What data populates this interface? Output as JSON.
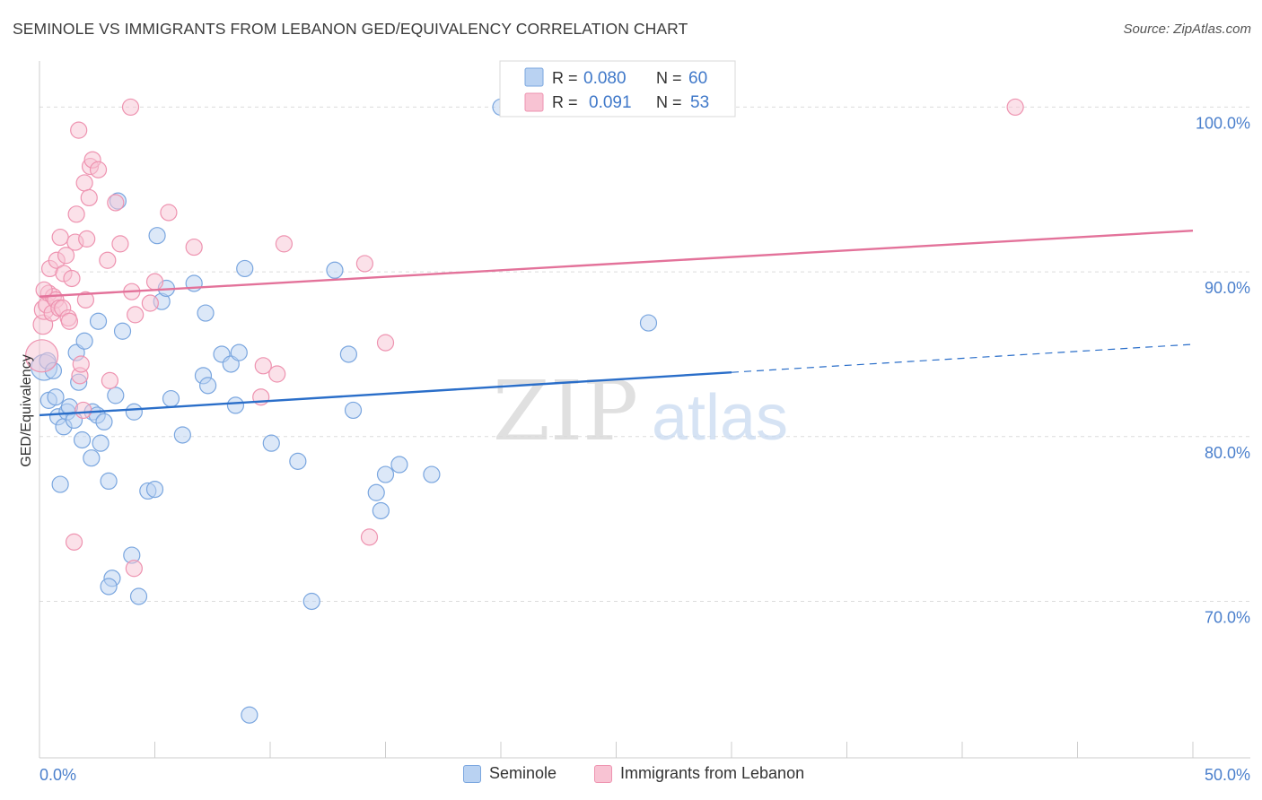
{
  "header": {
    "title": "SEMINOLE VS IMMIGRANTS FROM LEBANON GED/EQUIVALENCY CORRELATION CHART",
    "source": "Source: ZipAtlas.com"
  },
  "watermark": {
    "zip": "ZIP",
    "atlas": "atlas"
  },
  "colors": {
    "seminole_fill": "#b9d2f2",
    "seminole_stroke": "#7aa6df",
    "seminole_line": "#2a6ec9",
    "lebanon_fill": "#f8c3d3",
    "lebanon_stroke": "#ee93b0",
    "lebanon_line": "#e3729a",
    "tick_label": "#4a7fcc",
    "grid": "#dcdcdc"
  },
  "legend_top": {
    "rows": [
      {
        "r_label": "R =",
        "r_value": "0.080",
        "n_label": "N =",
        "n_value": "60"
      },
      {
        "r_label": "R =",
        "r_value": "0.091",
        "n_label": "N =",
        "n_value": "53"
      }
    ]
  },
  "legend_bottom": {
    "items": [
      "Seminole",
      "Immigrants from Lebanon"
    ]
  },
  "chart_data": {
    "type": "scatter",
    "title": "SEMINOLE VS IMMIGRANTS FROM LEBANON GED/EQUIVALENCY CORRELATION CHART",
    "xlabel": "",
    "ylabel": "GED/Equivalency",
    "xlim": [
      0,
      50
    ],
    "ylim": [
      60.5,
      102.8
    ],
    "x_tick_labels": [
      "0.0%",
      "50.0%"
    ],
    "y_ticks": [
      70,
      80,
      90,
      100
    ],
    "y_tick_labels": [
      "70.0%",
      "80.0%",
      "90.0%",
      "100.0%"
    ],
    "grid": true,
    "legend_position": "top-center",
    "series": [
      {
        "name": "Seminole",
        "R": 0.08,
        "N": 60,
        "trend": {
          "x0": 0,
          "y0": 81.3,
          "x1": 30,
          "y1": 83.9,
          "dashed_to_x": 50,
          "dashed_to_y": 85.6
        },
        "points": [
          [
            0.2,
            84.2,
            1.6
          ],
          [
            0.35,
            84.6,
            1
          ],
          [
            0.4,
            82.2,
            1
          ],
          [
            0.6,
            84.0,
            1
          ],
          [
            0.7,
            82.4,
            1
          ],
          [
            0.8,
            81.2,
            1
          ],
          [
            0.9,
            77.1,
            1
          ],
          [
            1.05,
            80.6,
            1
          ],
          [
            1.2,
            81.5,
            1
          ],
          [
            1.3,
            81.8,
            1
          ],
          [
            1.5,
            81.0,
            1
          ],
          [
            1.6,
            85.1,
            1
          ],
          [
            1.7,
            83.3,
            1
          ],
          [
            1.85,
            79.8,
            1
          ],
          [
            1.95,
            85.8,
            1
          ],
          [
            2.3,
            81.5,
            1
          ],
          [
            2.25,
            78.7,
            1
          ],
          [
            2.5,
            81.3,
            1
          ],
          [
            2.55,
            87.0,
            1
          ],
          [
            2.65,
            79.6,
            1
          ],
          [
            2.8,
            80.9,
            1
          ],
          [
            3.0,
            77.3,
            1
          ],
          [
            3.15,
            71.4,
            1
          ],
          [
            3.3,
            82.5,
            1
          ],
          [
            3.4,
            94.3,
            1
          ],
          [
            3.6,
            86.4,
            1
          ],
          [
            3.0,
            70.9,
            1
          ],
          [
            4.0,
            72.8,
            1
          ],
          [
            4.1,
            81.5,
            1
          ],
          [
            4.3,
            70.3,
            1
          ],
          [
            4.7,
            76.7,
            1
          ],
          [
            5.0,
            76.8,
            1
          ],
          [
            5.1,
            92.2,
            1
          ],
          [
            5.3,
            88.2,
            1
          ],
          [
            5.5,
            89.0,
            1
          ],
          [
            5.7,
            82.3,
            1
          ],
          [
            6.2,
            80.1,
            1
          ],
          [
            6.7,
            89.3,
            1
          ],
          [
            7.1,
            83.7,
            1
          ],
          [
            7.2,
            87.5,
            1
          ],
          [
            7.3,
            83.1,
            1
          ],
          [
            7.9,
            85.0,
            1
          ],
          [
            8.3,
            84.4,
            1
          ],
          [
            8.5,
            81.9,
            1
          ],
          [
            8.65,
            85.1,
            1
          ],
          [
            8.9,
            90.2,
            1
          ],
          [
            9.1,
            63.1,
            1
          ],
          [
            10.05,
            79.6,
            1
          ],
          [
            11.2,
            78.5,
            1
          ],
          [
            11.8,
            70.0,
            1
          ],
          [
            12.8,
            90.1,
            1
          ],
          [
            13.4,
            85.0,
            1
          ],
          [
            13.6,
            81.6,
            1
          ],
          [
            14.6,
            76.6,
            1
          ],
          [
            14.8,
            75.5,
            1
          ],
          [
            15.0,
            77.7,
            1
          ],
          [
            15.6,
            78.3,
            1
          ],
          [
            17.0,
            77.7,
            1
          ],
          [
            20.0,
            100.0,
            1
          ],
          [
            26.4,
            86.9,
            1
          ]
        ]
      },
      {
        "name": "Immigrants from Lebanon",
        "R": 0.091,
        "N": 53,
        "trend": {
          "x0": 0,
          "y0": 88.5,
          "x1": 50,
          "y1": 92.5
        },
        "points": [
          [
            0.1,
            84.9,
            2.0
          ],
          [
            0.15,
            86.8,
            1.2
          ],
          [
            0.2,
            87.7,
            1.2
          ],
          [
            0.3,
            88.0,
            1
          ],
          [
            0.4,
            88.7,
            1
          ],
          [
            0.45,
            90.2,
            1
          ],
          [
            0.55,
            87.5,
            1
          ],
          [
            0.6,
            88.5,
            1
          ],
          [
            0.7,
            88.3,
            1
          ],
          [
            0.75,
            90.7,
            1
          ],
          [
            0.85,
            87.8,
            1
          ],
          [
            0.9,
            92.1,
            1
          ],
          [
            1.0,
            87.8,
            1
          ],
          [
            1.05,
            89.9,
            1
          ],
          [
            1.15,
            91.0,
            1
          ],
          [
            1.25,
            87.2,
            1
          ],
          [
            1.3,
            87.0,
            1
          ],
          [
            1.4,
            89.6,
            1
          ],
          [
            1.5,
            73.6,
            1
          ],
          [
            1.55,
            91.8,
            1
          ],
          [
            1.6,
            93.5,
            1
          ],
          [
            1.7,
            98.6,
            1
          ],
          [
            1.75,
            83.7,
            1
          ],
          [
            1.8,
            84.4,
            1
          ],
          [
            1.9,
            81.6,
            1
          ],
          [
            1.95,
            95.4,
            1
          ],
          [
            2.0,
            88.3,
            1
          ],
          [
            2.05,
            92.0,
            1
          ],
          [
            2.15,
            94.5,
            1
          ],
          [
            2.2,
            96.4,
            1
          ],
          [
            2.3,
            96.8,
            1
          ],
          [
            2.55,
            96.2,
            1
          ],
          [
            2.95,
            90.7,
            1
          ],
          [
            3.05,
            83.4,
            1
          ],
          [
            3.3,
            94.2,
            1
          ],
          [
            3.5,
            91.7,
            1
          ],
          [
            3.95,
            100.0,
            1
          ],
          [
            4.0,
            88.8,
            1
          ],
          [
            4.1,
            72.0,
            1
          ],
          [
            4.15,
            87.4,
            1
          ],
          [
            4.8,
            88.1,
            1
          ],
          [
            5.0,
            89.4,
            1
          ],
          [
            5.6,
            93.6,
            1
          ],
          [
            6.7,
            91.5,
            1
          ],
          [
            9.6,
            82.4,
            1
          ],
          [
            9.7,
            84.3,
            1
          ],
          [
            10.3,
            83.8,
            1
          ],
          [
            10.6,
            91.7,
            1
          ],
          [
            14.1,
            90.5,
            1
          ],
          [
            14.3,
            73.9,
            1
          ],
          [
            15.0,
            85.7,
            1
          ],
          [
            42.3,
            100.0,
            1
          ],
          [
            0.2,
            88.9,
            1
          ]
        ]
      }
    ]
  }
}
